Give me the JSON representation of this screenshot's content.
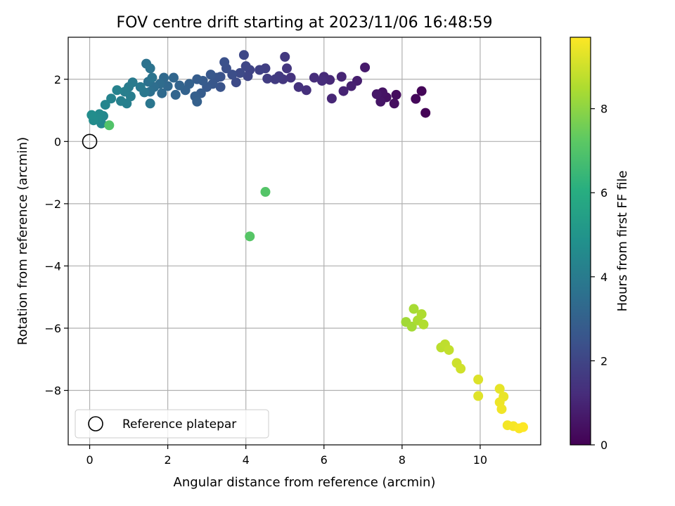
{
  "chart_data": {
    "type": "scatter",
    "title": "FOV centre drift starting at 2023/11/06 16:48:59",
    "xlabel": "Angular distance from reference (arcmin)",
    "ylabel": "Rotation from reference (arcmin)",
    "xlim": [
      -0.55,
      11.55
    ],
    "ylim": [
      -9.75,
      3.35
    ],
    "xticks": [
      0,
      2,
      4,
      6,
      8,
      10
    ],
    "yticks": [
      2,
      0,
      -2,
      -4,
      -6,
      -8
    ],
    "xtick_labels": [
      "0",
      "2",
      "4",
      "6",
      "8",
      "10"
    ],
    "ytick_labels": [
      "2",
      "0",
      "−2",
      "−4",
      "−6",
      "−8"
    ],
    "grid": true,
    "legend": {
      "label": "Reference platepar",
      "placement": "lower-left"
    },
    "reference_point": {
      "x": 0,
      "y": 0,
      "marker": "open-circle"
    },
    "colorbar": {
      "label": "Hours from first FF file",
      "min": 0,
      "max": 9.7,
      "ticks": [
        0,
        2,
        4,
        6,
        8
      ],
      "tick_labels": [
        "0",
        "2",
        "4",
        "6",
        "8"
      ],
      "colormap": "viridis"
    },
    "series": [
      {
        "columns": [
          "x",
          "y",
          "hours"
        ],
        "points": [
          [
            8.6,
            0.92,
            0.05
          ],
          [
            8.5,
            1.62,
            0.12
          ],
          [
            8.35,
            1.37,
            0.2
          ],
          [
            7.85,
            1.5,
            0.3
          ],
          [
            7.8,
            1.22,
            0.35
          ],
          [
            7.6,
            1.42,
            0.45
          ],
          [
            7.5,
            1.58,
            0.5
          ],
          [
            7.45,
            1.28,
            0.55
          ],
          [
            7.35,
            1.52,
            0.62
          ],
          [
            7.05,
            2.38,
            0.7
          ],
          [
            6.85,
            1.95,
            0.8
          ],
          [
            6.7,
            1.78,
            0.88
          ],
          [
            6.5,
            1.62,
            0.95
          ],
          [
            6.45,
            2.08,
            1.0
          ],
          [
            6.2,
            1.38,
            1.05
          ],
          [
            6.15,
            1.98,
            1.1
          ],
          [
            6.0,
            2.08,
            1.15
          ],
          [
            5.95,
            1.95,
            1.2
          ],
          [
            5.75,
            2.05,
            1.25
          ],
          [
            5.55,
            1.65,
            1.3
          ],
          [
            5.35,
            1.75,
            1.38
          ],
          [
            5.15,
            2.05,
            1.45
          ],
          [
            5.05,
            2.35,
            1.5
          ],
          [
            4.95,
            2.0,
            1.55
          ],
          [
            5.0,
            2.72,
            1.6
          ],
          [
            4.85,
            2.1,
            1.65
          ],
          [
            4.75,
            2.0,
            1.7
          ],
          [
            4.55,
            2.02,
            1.75
          ],
          [
            4.5,
            2.35,
            1.8
          ],
          [
            4.35,
            2.3,
            1.88
          ],
          [
            4.1,
            2.3,
            1.95
          ],
          [
            4.05,
            2.1,
            2.0
          ],
          [
            4.0,
            2.42,
            2.05
          ],
          [
            3.95,
            2.78,
            2.1
          ],
          [
            3.85,
            2.2,
            2.15
          ],
          [
            3.75,
            1.9,
            2.2
          ],
          [
            3.65,
            2.15,
            2.28
          ],
          [
            3.5,
            2.35,
            2.35
          ],
          [
            3.45,
            2.55,
            2.4
          ],
          [
            3.35,
            2.08,
            2.45
          ],
          [
            3.35,
            1.75,
            2.5
          ],
          [
            3.25,
            2.05,
            2.55
          ],
          [
            3.15,
            1.85,
            2.6
          ],
          [
            3.1,
            2.15,
            2.65
          ],
          [
            3.0,
            1.75,
            2.7
          ],
          [
            2.9,
            1.95,
            2.75
          ],
          [
            2.85,
            1.55,
            2.8
          ],
          [
            2.75,
            2.0,
            2.85
          ],
          [
            2.7,
            1.45,
            2.9
          ],
          [
            2.75,
            1.28,
            2.95
          ],
          [
            2.55,
            1.85,
            3.0
          ],
          [
            2.45,
            1.65,
            3.05
          ],
          [
            2.3,
            1.8,
            3.1
          ],
          [
            2.2,
            1.5,
            3.15
          ],
          [
            2.15,
            2.05,
            3.2
          ],
          [
            2.0,
            1.78,
            3.25
          ],
          [
            1.9,
            2.05,
            3.3
          ],
          [
            1.85,
            1.55,
            3.35
          ],
          [
            1.8,
            1.85,
            3.4
          ],
          [
            1.65,
            1.75,
            3.48
          ],
          [
            1.55,
            1.6,
            3.55
          ],
          [
            1.5,
            1.92,
            3.6
          ],
          [
            1.45,
            2.5,
            3.62
          ],
          [
            1.55,
            2.35,
            3.68
          ],
          [
            1.6,
            2.05,
            3.72
          ],
          [
            1.55,
            1.22,
            3.78
          ],
          [
            1.4,
            1.58,
            3.85
          ],
          [
            1.3,
            1.75,
            3.9
          ],
          [
            1.1,
            1.9,
            3.95
          ],
          [
            1.0,
            1.75,
            4.0
          ],
          [
            1.05,
            1.45,
            4.05
          ],
          [
            0.9,
            1.6,
            4.1
          ],
          [
            0.95,
            1.22,
            4.15
          ],
          [
            0.8,
            1.3,
            4.2
          ],
          [
            0.7,
            1.65,
            4.25
          ],
          [
            0.55,
            1.38,
            4.32
          ],
          [
            0.4,
            1.18,
            4.4
          ],
          [
            0.35,
            0.82,
            4.45
          ],
          [
            0.3,
            0.58,
            4.5
          ],
          [
            0.25,
            0.88,
            4.55
          ],
          [
            0.2,
            0.75,
            4.6
          ],
          [
            0.1,
            0.68,
            4.65
          ],
          [
            0.05,
            0.85,
            4.7
          ],
          [
            0.5,
            0.52,
            7.0
          ],
          [
            4.5,
            -1.62,
            7.05
          ],
          [
            4.1,
            -3.05,
            7.1
          ],
          [
            8.1,
            -5.8,
            8.3
          ],
          [
            8.25,
            -5.95,
            8.35
          ],
          [
            8.3,
            -5.38,
            8.4
          ],
          [
            8.4,
            -5.75,
            8.45
          ],
          [
            8.5,
            -5.55,
            8.5
          ],
          [
            8.55,
            -5.88,
            8.55
          ],
          [
            9.0,
            -6.62,
            8.7
          ],
          [
            9.1,
            -6.52,
            8.75
          ],
          [
            9.2,
            -6.7,
            8.8
          ],
          [
            9.4,
            -7.12,
            8.95
          ],
          [
            9.5,
            -7.3,
            9.0
          ],
          [
            9.95,
            -7.65,
            9.2
          ],
          [
            9.95,
            -8.18,
            9.25
          ],
          [
            10.5,
            -7.95,
            9.35
          ],
          [
            10.6,
            -8.2,
            9.4
          ],
          [
            10.5,
            -8.38,
            9.45
          ],
          [
            10.55,
            -8.6,
            9.5
          ],
          [
            10.7,
            -9.12,
            9.55
          ],
          [
            10.85,
            -9.15,
            9.6
          ],
          [
            11.0,
            -9.22,
            9.65
          ],
          [
            11.1,
            -9.18,
            9.7
          ]
        ]
      }
    ]
  }
}
